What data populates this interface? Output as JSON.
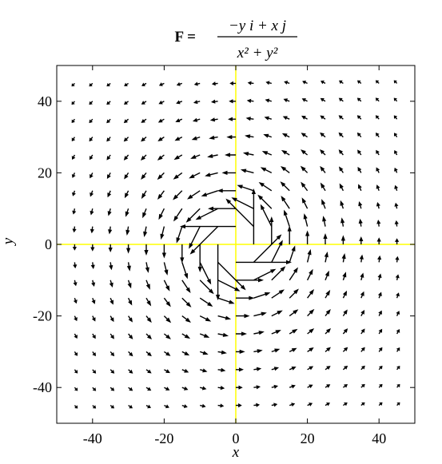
{
  "chart_data": {
    "type": "quiver",
    "title": {
      "lhs": "F =",
      "numerator": "−y i + x j",
      "denominator": "x² + y²"
    },
    "x_label": "x",
    "y_label": "y",
    "x": [
      -45,
      -40,
      -35,
      -30,
      -25,
      -20,
      -15,
      -10,
      -5,
      0,
      5,
      10,
      15,
      20,
      25,
      30,
      35,
      40,
      45
    ],
    "y": [
      -45,
      -40,
      -35,
      -30,
      -25,
      -20,
      -15,
      -10,
      -5,
      0,
      5,
      10,
      15,
      20,
      25,
      30,
      35,
      40,
      45
    ],
    "xlim": [
      -50,
      50
    ],
    "ylim": [
      -50,
      50
    ],
    "xticks": [
      -40,
      -20,
      0,
      20,
      40
    ],
    "yticks": [
      -40,
      -20,
      0,
      20,
      40
    ],
    "color": "#000000",
    "zero_lines_color": "#ffff00"
  }
}
